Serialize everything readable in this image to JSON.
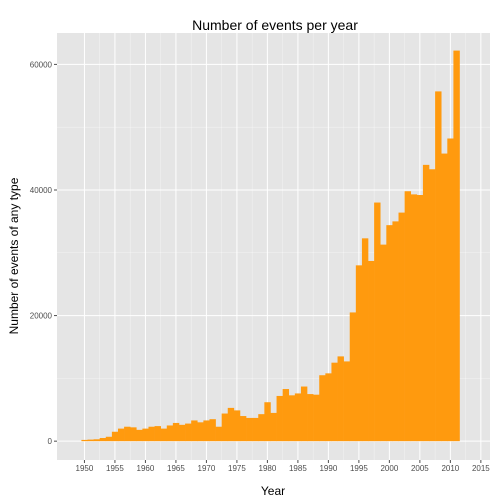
{
  "chart_data": {
    "type": "bar",
    "title": "Number of events per year",
    "xlabel": "Year",
    "ylabel": "Number of events of any type",
    "xlim": [
      1945.5,
      2016.5
    ],
    "ylim": [
      -3000,
      65000
    ],
    "x_ticks": [
      "1950",
      "1955",
      "1960",
      "1965",
      "1970",
      "1975",
      "1980",
      "1985",
      "1990",
      "1995",
      "2000",
      "2005",
      "2010",
      "2015"
    ],
    "y_ticks": [
      "0",
      "20000",
      "40000",
      "60000"
    ],
    "grid": true,
    "bar_color": "#FF9A0E",
    "panel_color": "#E5E5E5",
    "grid_color": "#FFFFFF",
    "x": [
      1950,
      1951,
      1952,
      1953,
      1954,
      1955,
      1956,
      1957,
      1958,
      1959,
      1960,
      1961,
      1962,
      1963,
      1964,
      1965,
      1966,
      1967,
      1968,
      1969,
      1970,
      1971,
      1972,
      1973,
      1974,
      1975,
      1976,
      1977,
      1978,
      1979,
      1980,
      1981,
      1982,
      1983,
      1984,
      1985,
      1986,
      1987,
      1988,
      1989,
      1990,
      1991,
      1992,
      1993,
      1994,
      1995,
      1996,
      1997,
      1998,
      1999,
      2000,
      2001,
      2002,
      2003,
      2004,
      2005,
      2006,
      2007,
      2008,
      2009,
      2010,
      2011
    ],
    "values": [
      200,
      250,
      300,
      500,
      700,
      1500,
      2000,
      2300,
      2200,
      1800,
      2000,
      2300,
      2400,
      2000,
      2500,
      2900,
      2600,
      2800,
      3300,
      3000,
      3300,
      3500,
      2300,
      4400,
      5300,
      4900,
      4000,
      3700,
      3700,
      4300,
      6200,
      4500,
      7200,
      8300,
      7300,
      7600,
      8700,
      7500,
      7400,
      10500,
      10800,
      12500,
      13500,
      12700,
      20500,
      28000,
      32300,
      28700,
      38000,
      31300,
      34400,
      35000,
      36400,
      39800,
      39300,
      39200,
      44000,
      43300,
      55700,
      45800,
      48200,
      62200
    ]
  }
}
